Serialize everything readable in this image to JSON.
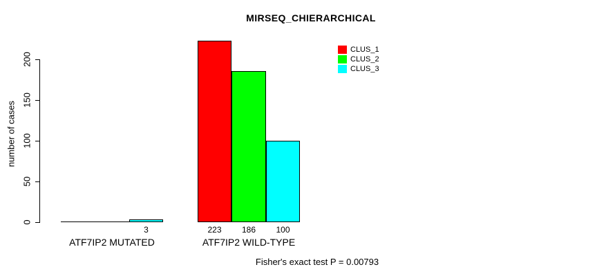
{
  "chart_data": {
    "type": "bar",
    "title": "MIRSEQ_CHIERARCHICAL",
    "xlabel": "",
    "ylabel": "number of cases",
    "categories": [
      "ATF7IP2 MUTATED",
      "ATF7IP2 WILD-TYPE"
    ],
    "series": [
      {
        "name": "CLUS_1",
        "color": "#ff0000",
        "values": [
          0,
          223
        ]
      },
      {
        "name": "CLUS_2",
        "color": "#00ff00",
        "values": [
          0,
          186
        ]
      },
      {
        "name": "CLUS_3",
        "color": "#00ffff",
        "values": [
          3,
          100
        ]
      }
    ],
    "yticks": [
      0,
      50,
      100,
      150,
      200
    ],
    "ylim": [
      0,
      225
    ],
    "grid": false,
    "legend_position": "top-right",
    "show_value_labels": true,
    "value_labels_shown": [
      "3",
      "223",
      "186",
      "100"
    ],
    "annotation": "Fisher's exact test P = 0.00793",
    "bar_border_color": "#000000",
    "background_color": "#ffffff"
  }
}
